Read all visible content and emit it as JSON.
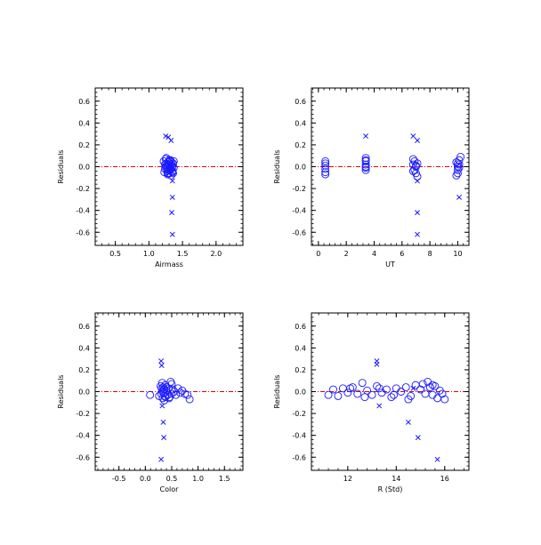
{
  "chart_data": [
    {
      "type": "scatter",
      "title": "",
      "xlabel": "Airmass",
      "ylabel": "Residuals",
      "xlim": [
        0.2,
        2.4
      ],
      "ylim": [
        -0.72,
        0.72
      ],
      "xticks": [
        0.5,
        1.0,
        1.5,
        2.0
      ],
      "xtick_labels": [
        "0.5",
        "1.0",
        "1.5",
        "2.0"
      ],
      "yticks": [
        -0.6,
        -0.4,
        -0.2,
        0.0,
        0.2,
        0.4,
        0.6
      ],
      "ytick_labels": [
        "-0.6",
        "-0.4",
        "-0.2",
        "0.0",
        "0.2",
        "0.4",
        "0.6"
      ],
      "zero_line": 0.0,
      "grid": false,
      "series": [
        {
          "marker": "circle",
          "x": [
            1.22,
            1.24,
            1.26,
            1.27,
            1.28,
            1.29,
            1.3,
            1.31,
            1.32,
            1.33,
            1.34,
            1.35,
            1.36,
            1.37,
            1.25,
            1.27,
            1.29,
            1.31,
            1.33,
            1.35,
            1.23,
            1.26,
            1.28,
            1.3,
            1.32,
            1.34,
            1.36,
            1.25,
            1.29,
            1.33,
            1.37,
            1.27,
            1.31,
            1.35,
            1.24,
            1.3
          ],
          "y": [
            0.05,
            -0.02,
            0.08,
            0.01,
            -0.06,
            0.04,
            0.0,
            -0.03,
            0.06,
            -0.08,
            0.02,
            -0.05,
            0.03,
            -0.01,
            0.07,
            -0.04,
            0.02,
            0.05,
            -0.02,
            0.0,
            -0.05,
            0.03,
            -0.07,
            0.06,
            -0.01,
            0.04,
            -0.06,
            0.0,
            -0.03,
            0.01,
            0.05,
            -0.02,
            0.03,
            -0.04,
            0.02,
            -0.06
          ]
        },
        {
          "marker": "x",
          "x": [
            1.25,
            1.29,
            1.33,
            1.35,
            1.35,
            1.34,
            1.35
          ],
          "y": [
            0.28,
            0.27,
            0.24,
            -0.13,
            -0.28,
            -0.42,
            -0.62
          ]
        }
      ]
    },
    {
      "type": "scatter",
      "title": "",
      "xlabel": "UT",
      "ylabel": "Residuals",
      "xlim": [
        -0.5,
        10.8
      ],
      "ylim": [
        -0.72,
        0.72
      ],
      "xticks": [
        0,
        2,
        4,
        6,
        8,
        10
      ],
      "xtick_labels": [
        "0",
        "2",
        "4",
        "6",
        "8",
        "10"
      ],
      "yticks": [
        -0.6,
        -0.4,
        -0.2,
        0.0,
        0.2,
        0.4,
        0.6
      ],
      "ytick_labels": [
        "-0.6",
        "-0.4",
        "-0.2",
        "0.0",
        "0.2",
        "0.4",
        "0.6"
      ],
      "zero_line": 0.0,
      "grid": false,
      "series": [
        {
          "marker": "circle",
          "x": [
            0.5,
            0.5,
            0.5,
            0.5,
            0.5,
            0.5,
            3.4,
            3.4,
            3.4,
            3.4,
            3.4,
            3.4,
            3.4,
            6.8,
            6.8,
            6.9,
            6.9,
            7.0,
            7.0,
            7.1,
            7.1,
            6.8,
            7.0,
            9.9,
            10.0,
            10.0,
            10.1,
            10.0,
            10.1,
            9.9,
            10.0,
            10.2,
            10.1
          ],
          "y": [
            0.05,
            0.01,
            -0.02,
            -0.05,
            0.03,
            -0.07,
            0.08,
            0.05,
            0.02,
            -0.01,
            0.06,
            -0.03,
            0.0,
            0.07,
            0.02,
            -0.03,
            0.05,
            0.0,
            -0.06,
            0.03,
            -0.09,
            -0.04,
            0.01,
            0.04,
            0.0,
            -0.03,
            0.06,
            -0.06,
            0.02,
            -0.08,
            0.03,
            0.09,
            -0.01
          ]
        },
        {
          "marker": "x",
          "x": [
            3.4,
            6.8,
            7.1,
            7.1,
            7.1,
            7.1,
            10.1
          ],
          "y": [
            0.28,
            0.28,
            0.24,
            -0.13,
            -0.42,
            -0.62,
            -0.28
          ]
        }
      ]
    },
    {
      "type": "scatter",
      "title": "",
      "xlabel": "Color",
      "ylabel": "Residuals",
      "xlim": [
        -0.95,
        1.85
      ],
      "ylim": [
        -0.72,
        0.72
      ],
      "xticks": [
        -0.5,
        0.0,
        0.5,
        1.0,
        1.5
      ],
      "xtick_labels": [
        "-0.5",
        "0.0",
        "0.5",
        "1.0",
        "1.5"
      ],
      "yticks": [
        -0.6,
        -0.4,
        -0.2,
        0.0,
        0.2,
        0.4,
        0.6
      ],
      "ytick_labels": [
        "-0.6",
        "-0.4",
        "-0.2",
        "0.0",
        "0.2",
        "0.4",
        "0.6"
      ],
      "zero_line": 0.0,
      "grid": false,
      "series": [
        {
          "marker": "circle",
          "x": [
            0.09,
            0.26,
            0.29,
            0.3,
            0.31,
            0.32,
            0.33,
            0.34,
            0.35,
            0.36,
            0.37,
            0.38,
            0.4,
            0.42,
            0.44,
            0.46,
            0.48,
            0.5,
            0.52,
            0.55,
            0.58,
            0.62,
            0.66,
            0.7,
            0.75,
            0.8,
            0.84,
            0.32,
            0.36,
            0.4,
            0.45,
            0.5,
            0.35,
            0.38
          ],
          "y": [
            -0.03,
            -0.04,
            0.05,
            -0.02,
            0.03,
            0.0,
            -0.06,
            0.04,
            -0.01,
            0.02,
            -0.04,
            0.06,
            0.01,
            -0.03,
            0.03,
            -0.05,
            0.09,
            -0.02,
            0.02,
            0.0,
            -0.03,
            0.03,
            -0.01,
            0.01,
            -0.02,
            -0.03,
            -0.07,
            0.08,
            -0.08,
            0.04,
            -0.06,
            0.07,
            0.02,
            -0.05
          ]
        },
        {
          "marker": "x",
          "x": [
            0.3,
            0.31,
            0.32,
            0.34,
            0.35,
            0.3
          ],
          "y": [
            0.28,
            0.24,
            -0.13,
            -0.28,
            -0.42,
            -0.62
          ]
        }
      ]
    },
    {
      "type": "scatter",
      "title": "",
      "xlabel": "R (Std)",
      "ylabel": "Residuals",
      "xlim": [
        10.5,
        17.0
      ],
      "ylim": [
        -0.72,
        0.72
      ],
      "xticks": [
        12,
        14,
        16
      ],
      "xtick_labels": [
        "12",
        "14",
        "16"
      ],
      "yticks": [
        -0.6,
        -0.4,
        -0.2,
        0.0,
        0.2,
        0.4,
        0.6
      ],
      "ytick_labels": [
        "-0.6",
        "-0.4",
        "-0.2",
        "0.0",
        "0.2",
        "0.4",
        "0.6"
      ],
      "zero_line": 0.0,
      "grid": false,
      "series": [
        {
          "marker": "circle",
          "x": [
            11.2,
            11.4,
            11.6,
            11.8,
            12.0,
            12.2,
            12.4,
            12.6,
            12.8,
            13.0,
            13.2,
            13.4,
            13.6,
            13.8,
            14.0,
            14.2,
            14.4,
            14.6,
            14.8,
            15.0,
            15.2,
            15.3,
            15.4,
            15.5,
            15.6,
            15.7,
            15.8,
            15.9,
            16.0,
            12.7,
            13.3,
            14.5,
            15.1,
            12.1,
            13.9,
            15.5
          ],
          "y": [
            -0.03,
            0.02,
            -0.04,
            0.03,
            -0.01,
            0.04,
            -0.02,
            0.08,
            0.01,
            -0.03,
            0.05,
            -0.01,
            0.02,
            -0.05,
            0.03,
            0.0,
            0.04,
            -0.04,
            0.06,
            0.02,
            -0.02,
            0.09,
            0.04,
            -0.03,
            0.05,
            -0.06,
            0.01,
            -0.02,
            -0.07,
            -0.05,
            0.03,
            -0.07,
            0.07,
            0.03,
            -0.03,
            0.06
          ]
        },
        {
          "marker": "x",
          "x": [
            13.2,
            13.2,
            13.3,
            14.7,
            14.5,
            14.9,
            15.7
          ],
          "y": [
            0.28,
            0.25,
            -0.13,
            0.03,
            -0.28,
            -0.42,
            -0.62
          ]
        }
      ]
    }
  ]
}
